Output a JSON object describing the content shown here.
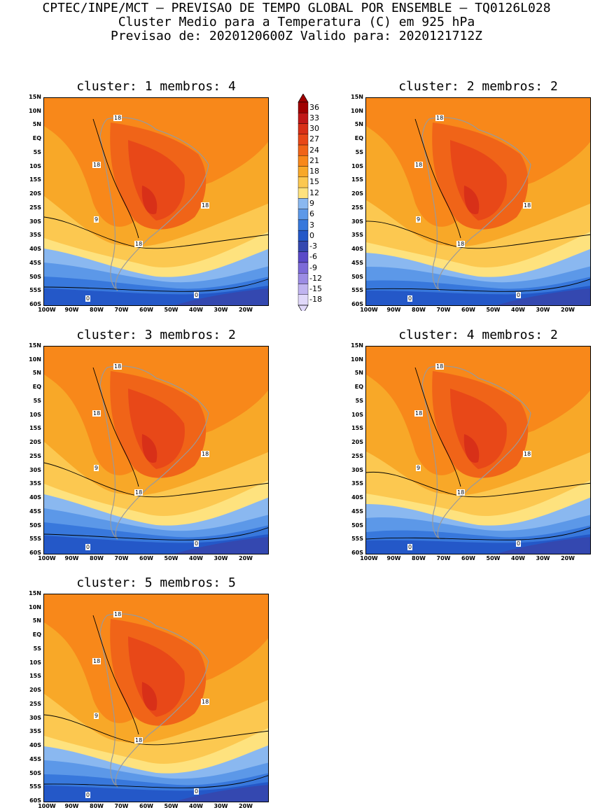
{
  "header": {
    "line1": "CPTEC/INPE/MCT – PREVISAO DE TEMPO GLOBAL POR ENSEMBLE – TQ0126L028",
    "line2": "Cluster Medio para a Temperatura (C) em 925 hPa",
    "line3": "Previsao de: 2020120600Z   Valido para: 2020121712Z"
  },
  "panels": [
    {
      "title": "cluster: 1  membros: 4"
    },
    {
      "title": "cluster: 2  membros: 2"
    },
    {
      "title": "cluster: 3  membros: 2"
    },
    {
      "title": "cluster: 4  membros: 2"
    },
    {
      "title": "cluster: 5  membros: 5"
    }
  ],
  "lat_labels": [
    "15N",
    "10N",
    "5N",
    "EQ",
    "5S",
    "10S",
    "15S",
    "20S",
    "25S",
    "30S",
    "35S",
    "40S",
    "45S",
    "50S",
    "55S",
    "60S"
  ],
  "lon_labels": [
    "100W",
    "90W",
    "80W",
    "70W",
    "60W",
    "50W",
    "40W",
    "30W",
    "20W"
  ],
  "contour_labels": [
    "18",
    "18",
    "18",
    "18",
    "9",
    "0",
    "0"
  ],
  "colorbar": {
    "levels": [
      "36",
      "33",
      "30",
      "27",
      "24",
      "21",
      "18",
      "15",
      "12",
      "9",
      "6",
      "3",
      "0",
      "-3",
      "-6",
      "-9",
      "-12",
      "-15",
      "-18"
    ],
    "colors": [
      "#a00000",
      "#c01818",
      "#d83018",
      "#e84818",
      "#f06418",
      "#f8881a",
      "#f8a828",
      "#fcc850",
      "#fee27e",
      "#8ab8f0",
      "#5c98e8",
      "#3878dc",
      "#2458c8",
      "#3448b0",
      "#5a4ac8",
      "#7c6ad8",
      "#9c8ce4",
      "#c0b4f0",
      "#e0d8fa"
    ]
  }
}
